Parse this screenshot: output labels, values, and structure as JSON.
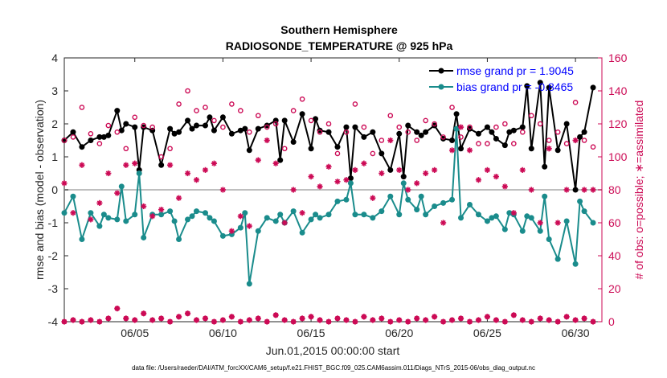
{
  "chart_data": {
    "type": "line",
    "title": "Southern Hemisphere",
    "subtitle": "RADIOSONDE_TEMPERATURE @ 925 hPa",
    "xlabel": "Jun.01,2015 00:00:00 start",
    "ylabel": "rmse and bias (model - observation)",
    "ylabel_right": "# of obs: o=possible; ∗=assimilated",
    "xlim": [
      1,
      31.5
    ],
    "ylim": [
      -4,
      4
    ],
    "ylim_right": [
      0,
      160
    ],
    "x_ticks": [
      5,
      10,
      15,
      20,
      25,
      30
    ],
    "x_tick_labels": [
      "06/05",
      "06/10",
      "06/15",
      "06/20",
      "06/25",
      "06/30"
    ],
    "y_ticks": [
      -4,
      -3,
      -2,
      -1,
      0,
      1,
      2,
      3,
      4
    ],
    "y_tick_labels": [
      "-4",
      "-3",
      "-2",
      "-1",
      "0",
      "1",
      "2",
      "3",
      "4"
    ],
    "y_right_ticks": [
      0,
      20,
      40,
      60,
      80,
      100,
      120,
      140,
      160
    ],
    "y_right_tick_labels": [
      "0",
      "20",
      "40",
      "60",
      "80",
      "100",
      "120",
      "140",
      "160"
    ],
    "footnote": "data file: /Users/raeder/DAI/ATM_forcXX/CAM6_setup/f.e21.FHIST_BGC.f09_025.CAM6assim.011/Diags_NTrS_2015-06/obs_diag_output.nc",
    "series": [
      {
        "name": "rmse grand pr = 1.9045",
        "color": "#000000",
        "axis": "left",
        "x": [
          1.0,
          1.5,
          2.0,
          2.5,
          3.0,
          3.25,
          3.5,
          4.0,
          4.25,
          4.5,
          5.0,
          5.25,
          5.5,
          6.0,
          6.5,
          7.0,
          7.25,
          7.5,
          8.0,
          8.25,
          8.5,
          9.0,
          9.25,
          9.5,
          10.0,
          10.5,
          11.0,
          11.25,
          11.5,
          12.0,
          12.5,
          13.0,
          13.25,
          13.5,
          14.0,
          14.5,
          15.0,
          15.25,
          15.5,
          16.0,
          16.5,
          17.0,
          17.25,
          17.5,
          18.0,
          18.5,
          19.0,
          19.5,
          20.0,
          20.25,
          20.5,
          21.0,
          21.25,
          21.5,
          22.0,
          22.5,
          23.0,
          23.25,
          23.5,
          24.0,
          24.5,
          25.0,
          25.25,
          25.5,
          26.0,
          26.25,
          26.5,
          27.0,
          27.25,
          27.5,
          28.0,
          28.25,
          28.5,
          29.0,
          29.5,
          30.0,
          30.25,
          30.5,
          31.0
        ],
        "y": [
          1.5,
          1.75,
          1.3,
          1.5,
          1.6,
          1.6,
          1.65,
          2.4,
          1.8,
          2.0,
          1.9,
          0.6,
          1.9,
          1.8,
          0.75,
          1.85,
          1.7,
          1.75,
          2.1,
          1.85,
          1.95,
          1.95,
          2.2,
          1.8,
          2.2,
          1.7,
          1.8,
          1.85,
          1.2,
          1.85,
          1.95,
          2.1,
          0.9,
          2.1,
          1.45,
          2.3,
          1.25,
          2.15,
          1.8,
          1.75,
          1.3,
          1.9,
          0.35,
          1.9,
          1.6,
          1.75,
          1.1,
          0.6,
          1.7,
          0.4,
          1.95,
          1.75,
          1.65,
          1.75,
          1.95,
          1.55,
          1.5,
          2.3,
          1.25,
          1.85,
          1.7,
          1.9,
          1.75,
          1.55,
          1.35,
          1.75,
          1.8,
          1.9,
          3.15,
          1.25,
          3.25,
          0.7,
          3.1,
          1.2,
          2.0,
          0.0,
          1.6,
          1.75,
          3.1
        ]
      },
      {
        "name": "bias grand pr = -0.8465",
        "color": "#1a8c8c",
        "axis": "left",
        "x": [
          1.0,
          1.5,
          2.0,
          2.5,
          3.0,
          3.25,
          3.5,
          4.0,
          4.25,
          4.5,
          5.0,
          5.25,
          5.5,
          6.0,
          6.5,
          7.0,
          7.25,
          7.5,
          8.0,
          8.25,
          8.5,
          9.0,
          9.25,
          9.5,
          10.0,
          10.5,
          11.0,
          11.25,
          11.5,
          12.0,
          12.5,
          13.0,
          13.25,
          13.5,
          14.0,
          14.5,
          15.0,
          15.25,
          15.5,
          16.0,
          16.5,
          17.0,
          17.25,
          17.5,
          18.0,
          18.5,
          19.0,
          19.5,
          20.0,
          20.25,
          20.5,
          21.0,
          21.25,
          21.5,
          22.0,
          22.5,
          23.0,
          23.25,
          23.5,
          24.0,
          24.5,
          25.0,
          25.25,
          25.5,
          26.0,
          26.25,
          26.5,
          27.0,
          27.25,
          27.5,
          28.0,
          28.25,
          28.5,
          29.0,
          29.5,
          30.0,
          30.25,
          30.5,
          31.0
        ],
        "y": [
          -0.7,
          -0.2,
          -1.5,
          -0.7,
          -1.1,
          -0.75,
          -0.85,
          -0.9,
          0.1,
          -0.95,
          -0.75,
          0.5,
          -1.45,
          -0.75,
          -0.75,
          -0.65,
          -0.95,
          -1.5,
          -0.9,
          -0.8,
          -0.65,
          -0.7,
          -0.85,
          -0.95,
          -1.4,
          -1.35,
          -1.15,
          -0.7,
          -2.85,
          -1.25,
          -0.85,
          -0.95,
          -0.75,
          -1.0,
          -0.65,
          -1.3,
          -0.9,
          -0.75,
          -0.85,
          -0.75,
          -0.35,
          -0.3,
          0.2,
          -0.75,
          -0.75,
          -0.85,
          -0.65,
          -0.2,
          -0.75,
          0.2,
          -0.3,
          -0.6,
          -0.2,
          -0.75,
          -0.5,
          -0.4,
          -0.3,
          1.85,
          -0.85,
          -0.45,
          -0.75,
          -0.95,
          -0.85,
          -0.8,
          -1.2,
          -0.7,
          -0.75,
          -1.25,
          -0.8,
          -0.85,
          -1.25,
          -0.2,
          -1.5,
          -2.1,
          -0.95,
          -2.25,
          -0.35,
          -0.65,
          -1.0
        ]
      },
      {
        "name": "possible obs count",
        "marker": "o",
        "color": "#cc0a55",
        "axis": "right",
        "x": [
          1.0,
          1.5,
          2.0,
          2.5,
          3.0,
          3.5,
          4.0,
          4.5,
          5.0,
          5.5,
          6.0,
          6.5,
          7.0,
          7.5,
          8.0,
          8.5,
          9.0,
          9.5,
          10.0,
          10.5,
          11.0,
          11.5,
          12.0,
          12.5,
          13.0,
          13.5,
          14.0,
          14.5,
          15.0,
          15.5,
          16.0,
          16.5,
          17.0,
          17.5,
          18.0,
          18.5,
          19.0,
          19.5,
          20.0,
          20.5,
          21.0,
          21.5,
          22.0,
          22.5,
          23.0,
          23.5,
          24.0,
          24.5,
          25.0,
          25.5,
          26.0,
          26.5,
          27.0,
          27.5,
          28.0,
          28.5,
          29.0,
          29.5,
          30.0,
          30.5,
          31.0
        ],
        "y": [
          110,
          112,
          130,
          114,
          108,
          119,
          115,
          105,
          124,
          119,
          118,
          100,
          105,
          132,
          140,
          128,
          130,
          122,
          118,
          132,
          128,
          115,
          125,
          118,
          120,
          105,
          128,
          135,
          122,
          115,
          120,
          102,
          115,
          132,
          118,
          102,
          110,
          125,
          118,
          115,
          110,
          122,
          120,
          112,
          130,
          112,
          118,
          108,
          108,
          118,
          120,
          108,
          115,
          125,
          120,
          110,
          115,
          108,
          133,
          110,
          106
        ]
      },
      {
        "name": "assimilated obs count",
        "marker": "*",
        "color": "#cc0a55",
        "axis": "right",
        "x": [
          1.0,
          1.5,
          2.0,
          2.5,
          3.0,
          3.5,
          4.0,
          4.5,
          5.0,
          5.5,
          6.0,
          6.5,
          7.0,
          7.5,
          8.0,
          8.5,
          9.0,
          9.5,
          10.0,
          10.5,
          11.0,
          11.5,
          12.0,
          12.5,
          13.0,
          13.5,
          14.0,
          14.5,
          15.0,
          15.5,
          16.0,
          16.5,
          17.0,
          17.5,
          18.0,
          18.5,
          19.0,
          19.5,
          20.0,
          20.5,
          21.0,
          21.5,
          22.0,
          22.5,
          23.0,
          23.5,
          24.0,
          24.5,
          25.0,
          25.5,
          26.0,
          26.5,
          27.0,
          27.5,
          28.0,
          28.5,
          29.0,
          29.5,
          30.0,
          30.5,
          31.0
        ],
        "y": [
          84,
          66,
          95,
          62,
          72,
          90,
          78,
          95,
          96,
          70,
          64,
          68,
          95,
          75,
          90,
          86,
          92,
          96,
          80,
          55,
          64,
          58,
          98,
          110,
          96,
          60,
          80,
          66,
          88,
          82,
          94,
          85,
          86,
          92,
          96,
          75,
          90,
          110,
          92,
          80,
          84,
          90,
          92,
          60,
          104,
          118,
          104,
          86,
          92,
          88,
          82,
          66,
          92,
          80,
          60,
          105,
          60,
          80,
          110,
          80,
          80
        ]
      },
      {
        "name": "possible obs count (low)",
        "marker": "o",
        "color": "#cc0a55",
        "axis": "right",
        "x": [
          1.0,
          1.5,
          2.0,
          2.5,
          3.0,
          3.5,
          4.0,
          4.5,
          5.0,
          5.5,
          6.0,
          6.5,
          7.0,
          7.5,
          8.0,
          8.5,
          9.0,
          9.5,
          10.0,
          10.5,
          11.0,
          11.5,
          12.0,
          12.5,
          13.0,
          13.5,
          14.0,
          14.5,
          15.0,
          15.5,
          16.0,
          16.5,
          17.0,
          17.5,
          18.0,
          18.5,
          19.0,
          19.5,
          20.0,
          20.5,
          21.0,
          21.5,
          22.0,
          22.5,
          23.0,
          23.5,
          24.0,
          24.5,
          25.0,
          25.5,
          26.0,
          26.5,
          27.0,
          27.5,
          28.0,
          28.5,
          29.0,
          29.5,
          30.0,
          30.5,
          31.0
        ],
        "y": [
          0,
          1,
          0,
          1,
          0,
          2,
          8,
          2,
          1,
          5,
          1,
          2,
          0,
          3,
          5,
          1,
          2,
          0,
          1,
          3,
          0,
          1,
          2,
          0,
          4,
          1,
          0,
          2,
          3,
          1,
          0,
          2,
          1,
          0,
          3,
          1,
          2,
          0,
          1,
          0,
          2,
          1,
          3,
          0,
          1,
          2,
          0,
          1,
          3,
          1,
          0,
          4,
          1,
          0,
          2,
          1,
          0,
          3,
          1,
          2,
          0
        ]
      },
      {
        "name": "assimilated obs count (low)",
        "marker": "*",
        "color": "#cc0a55",
        "axis": "right",
        "x": [
          1.0,
          1.5,
          2.0,
          2.5,
          3.0,
          3.5,
          4.0,
          4.5,
          5.0,
          5.5,
          6.0,
          6.5,
          7.0,
          7.5,
          8.0,
          8.5,
          9.0,
          9.5,
          10.0,
          10.5,
          11.0,
          11.5,
          12.0,
          12.5,
          13.0,
          13.5,
          14.0,
          14.5,
          15.0,
          15.5,
          16.0,
          16.5,
          17.0,
          17.5,
          18.0,
          18.5,
          19.0,
          19.5,
          20.0,
          20.5,
          21.0,
          21.5,
          22.0,
          22.5,
          23.0,
          23.5,
          24.0,
          24.5,
          25.0,
          25.5,
          26.0,
          26.5,
          27.0,
          27.5,
          28.0,
          28.5,
          29.0,
          29.5,
          30.0,
          30.5,
          31.0
        ],
        "y": [
          0,
          1,
          0,
          1,
          0,
          2,
          8,
          2,
          1,
          5,
          1,
          2,
          0,
          3,
          5,
          1,
          2,
          0,
          1,
          3,
          0,
          1,
          2,
          0,
          4,
          1,
          0,
          2,
          3,
          1,
          0,
          2,
          1,
          0,
          3,
          1,
          2,
          0,
          1,
          0,
          2,
          1,
          3,
          0,
          1,
          2,
          0,
          1,
          3,
          1,
          0,
          4,
          1,
          0,
          2,
          1,
          0,
          3,
          1,
          2,
          0
        ]
      }
    ],
    "legend": {
      "position": "top-right",
      "entries": [
        "rmse grand pr = 1.9045",
        "bias grand pr = -0.8465"
      ]
    },
    "colors": {
      "rmse": "#000000",
      "bias": "#1a8c8c",
      "obs": "#cc0a55",
      "zero_line": "#bfbfbf",
      "axis": "#262626"
    }
  }
}
